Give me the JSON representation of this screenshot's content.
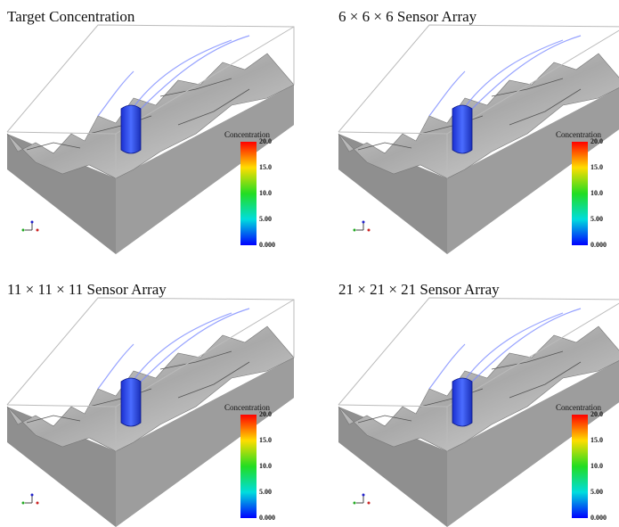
{
  "panels": [
    {
      "title": "Target Concentration",
      "colorbar": {
        "label": "Concentration",
        "ticks": [
          "20.0",
          "15.0",
          "10.0",
          "5.00",
          "0.000"
        ]
      }
    },
    {
      "title": "6 × 6 × 6 Sensor Array",
      "colorbar": {
        "label": "Concentration",
        "ticks": [
          "20.0",
          "15.0",
          "10.0",
          "5.00",
          "0.000"
        ]
      }
    },
    {
      "title": "11 × 11 × 11 Sensor Array",
      "colorbar": {
        "label": "Concentration",
        "ticks": [
          "20.0",
          "15.0",
          "10.0",
          "5.00",
          "0.000"
        ]
      }
    },
    {
      "title": "21 × 21 × 21 Sensor Array",
      "colorbar": {
        "label": "Concentration",
        "ticks": [
          "20.0",
          "15.0",
          "10.0",
          "5.00",
          "0.000"
        ]
      }
    }
  ]
}
